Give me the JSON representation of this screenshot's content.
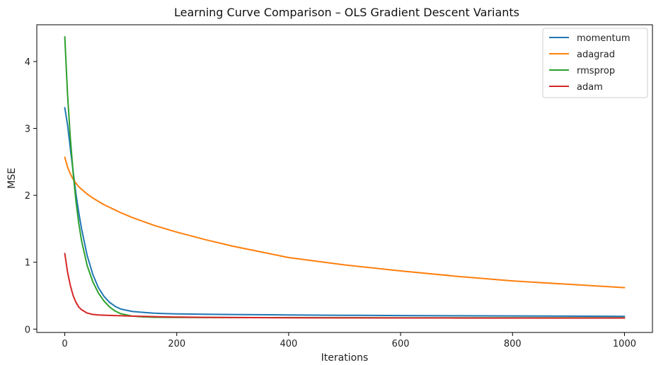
{
  "chart_data": {
    "type": "line",
    "title": "Learning Curve Comparison – OLS Gradient Descent Variants",
    "xlabel": "Iterations",
    "ylabel": "MSE",
    "xlim": [
      -50,
      1050
    ],
    "ylim": [
      -0.05,
      4.55
    ],
    "xticks": [
      0,
      200,
      400,
      600,
      800,
      1000
    ],
    "yticks": [
      0,
      1,
      2,
      3,
      4
    ],
    "grid": false,
    "legend_position": "top-right",
    "x": [
      0,
      5,
      10,
      15,
      20,
      25,
      30,
      40,
      50,
      60,
      70,
      80,
      90,
      100,
      120,
      140,
      160,
      180,
      200,
      250,
      300,
      400,
      500,
      600,
      700,
      800,
      900,
      1000
    ],
    "series": [
      {
        "name": "momentum",
        "color": "#1f77b4",
        "values": [
          3.31,
          3.05,
          2.7,
          2.35,
          2.02,
          1.74,
          1.5,
          1.1,
          0.82,
          0.62,
          0.49,
          0.4,
          0.34,
          0.3,
          0.265,
          0.25,
          0.238,
          0.232,
          0.228,
          0.222,
          0.218,
          0.212,
          0.207,
          0.203,
          0.2,
          0.197,
          0.194,
          0.19
        ]
      },
      {
        "name": "adagrad",
        "color": "#ff7f0e",
        "values": [
          2.57,
          2.42,
          2.32,
          2.24,
          2.18,
          2.13,
          2.09,
          2.02,
          1.96,
          1.91,
          1.86,
          1.82,
          1.78,
          1.74,
          1.67,
          1.61,
          1.55,
          1.5,
          1.45,
          1.34,
          1.24,
          1.07,
          0.96,
          0.87,
          0.79,
          0.72,
          0.67,
          0.62
        ]
      },
      {
        "name": "rmsprop",
        "color": "#2ca02c",
        "values": [
          4.37,
          3.5,
          2.85,
          2.33,
          1.91,
          1.58,
          1.32,
          0.95,
          0.71,
          0.54,
          0.42,
          0.33,
          0.27,
          0.23,
          0.195,
          0.183,
          0.178,
          0.176,
          0.175,
          0.174,
          0.173,
          0.172,
          0.171,
          0.17,
          0.17,
          0.17,
          0.17,
          0.17
        ]
      },
      {
        "name": "adam",
        "color": "#d62728",
        "values": [
          1.13,
          0.85,
          0.65,
          0.5,
          0.4,
          0.33,
          0.29,
          0.24,
          0.22,
          0.212,
          0.208,
          0.205,
          0.202,
          0.2,
          0.195,
          0.19,
          0.186,
          0.183,
          0.18,
          0.176,
          0.173,
          0.17,
          0.168,
          0.167,
          0.166,
          0.166,
          0.165,
          0.165
        ]
      }
    ]
  }
}
